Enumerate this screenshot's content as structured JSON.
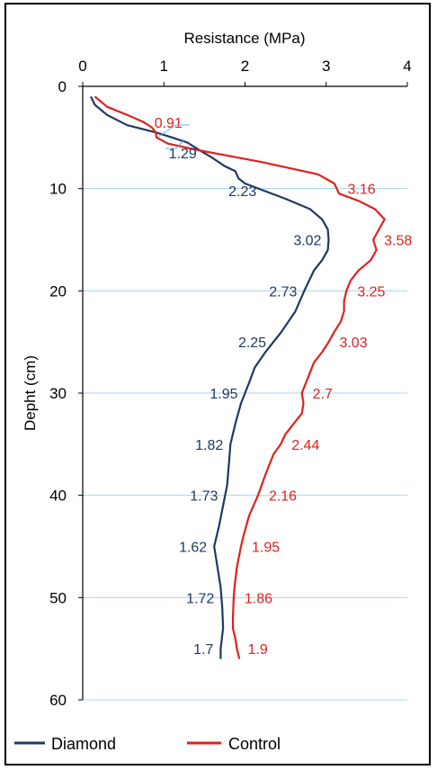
{
  "chart_data": {
    "type": "line",
    "orientation": "depth-profile",
    "xlabel": "Resistance (MPa)",
    "ylabel": "Depht (cm)",
    "xlim": [
      0,
      4
    ],
    "ylim": [
      0,
      60
    ],
    "x_ticks": [
      "0",
      "1",
      "2",
      "3",
      "4"
    ],
    "y_ticks": [
      "0",
      "10",
      "20",
      "30",
      "40",
      "50",
      "60"
    ],
    "x_axis_position": "top",
    "grid": "horizontal",
    "legend_position": "bottom",
    "series": [
      {
        "name": "Diamond",
        "color": "#1f3864",
        "points": [
          [
            0.1,
            1
          ],
          [
            0.15,
            1.8
          ],
          [
            0.3,
            2.8
          ],
          [
            0.55,
            3.8
          ],
          [
            0.9,
            4.5
          ],
          [
            1.1,
            5
          ],
          [
            1.29,
            5.5
          ],
          [
            1.45,
            6.3
          ],
          [
            1.6,
            7
          ],
          [
            1.75,
            7.8
          ],
          [
            1.88,
            8.3
          ],
          [
            1.92,
            9
          ],
          [
            2.0,
            9.5
          ],
          [
            2.23,
            10.2
          ],
          [
            2.5,
            11
          ],
          [
            2.8,
            12
          ],
          [
            2.95,
            13
          ],
          [
            3.02,
            14
          ],
          [
            3.03,
            15
          ],
          [
            3.02,
            16
          ],
          [
            2.95,
            17
          ],
          [
            2.85,
            18
          ],
          [
            2.73,
            20
          ],
          [
            2.62,
            22
          ],
          [
            2.45,
            24
          ],
          [
            2.25,
            26
          ],
          [
            2.12,
            27.5
          ],
          [
            2.05,
            29
          ],
          [
            1.95,
            31
          ],
          [
            1.88,
            33
          ],
          [
            1.82,
            35
          ],
          [
            1.8,
            37
          ],
          [
            1.78,
            39
          ],
          [
            1.73,
            41
          ],
          [
            1.68,
            43
          ],
          [
            1.62,
            45
          ],
          [
            1.66,
            47
          ],
          [
            1.7,
            49
          ],
          [
            1.72,
            51
          ],
          [
            1.73,
            53
          ],
          [
            1.7,
            55
          ],
          [
            1.7,
            56
          ]
        ],
        "labels": [
          {
            "text": "1.29",
            "depth": 6.5
          },
          {
            "text": "2.23",
            "depth": 10.2
          },
          {
            "text": "3.02",
            "depth": 15
          },
          {
            "text": "2.73",
            "depth": 20
          },
          {
            "text": "2.25",
            "depth": 25
          },
          {
            "text": "1.95",
            "depth": 30
          },
          {
            "text": "1.82",
            "depth": 35
          },
          {
            "text": "1.73",
            "depth": 40
          },
          {
            "text": "1.62",
            "depth": 45
          },
          {
            "text": "1.72",
            "depth": 50
          },
          {
            "text": "1.7",
            "depth": 55
          }
        ]
      },
      {
        "name": "Control",
        "color": "#e02020",
        "points": [
          [
            0.15,
            1
          ],
          [
            0.3,
            2
          ],
          [
            0.55,
            2.8
          ],
          [
            0.75,
            3.5
          ],
          [
            0.85,
            4
          ],
          [
            0.9,
            4.5
          ],
          [
            0.91,
            5
          ],
          [
            1.05,
            5.6
          ],
          [
            1.4,
            6.2
          ],
          [
            1.8,
            6.8
          ],
          [
            2.2,
            7.4
          ],
          [
            2.55,
            8
          ],
          [
            2.9,
            8.6
          ],
          [
            3.1,
            9.5
          ],
          [
            3.16,
            10.5
          ],
          [
            3.4,
            11.2
          ],
          [
            3.6,
            12
          ],
          [
            3.72,
            13
          ],
          [
            3.65,
            14
          ],
          [
            3.58,
            15
          ],
          [
            3.62,
            16
          ],
          [
            3.55,
            17
          ],
          [
            3.4,
            18
          ],
          [
            3.3,
            19
          ],
          [
            3.25,
            20
          ],
          [
            3.22,
            21
          ],
          [
            3.22,
            22
          ],
          [
            3.18,
            23
          ],
          [
            3.1,
            24
          ],
          [
            3.03,
            25
          ],
          [
            2.95,
            26
          ],
          [
            2.85,
            27
          ],
          [
            2.8,
            28
          ],
          [
            2.75,
            29
          ],
          [
            2.7,
            30
          ],
          [
            2.72,
            31
          ],
          [
            2.7,
            32
          ],
          [
            2.6,
            33
          ],
          [
            2.5,
            34
          ],
          [
            2.44,
            35
          ],
          [
            2.35,
            36
          ],
          [
            2.25,
            38
          ],
          [
            2.16,
            40
          ],
          [
            2.05,
            42
          ],
          [
            1.98,
            44
          ],
          [
            1.95,
            45
          ],
          [
            1.9,
            47
          ],
          [
            1.87,
            49
          ],
          [
            1.86,
            50
          ],
          [
            1.85,
            52
          ],
          [
            1.85,
            53
          ],
          [
            1.88,
            54
          ],
          [
            1.9,
            55
          ],
          [
            1.93,
            56
          ]
        ],
        "labels": [
          {
            "text": "0.91",
            "depth": 3.5
          },
          {
            "text": "3.16",
            "depth": 10
          },
          {
            "text": "3.58",
            "depth": 15
          },
          {
            "text": "3.25",
            "depth": 20
          },
          {
            "text": "3.03",
            "depth": 25
          },
          {
            "text": "2.7",
            "depth": 30
          },
          {
            "text": "2.44",
            "depth": 35
          },
          {
            "text": "2.16",
            "depth": 40
          },
          {
            "text": "1.95",
            "depth": 45
          },
          {
            "text": "1.86",
            "depth": 50
          },
          {
            "text": "1.9",
            "depth": 55
          }
        ]
      }
    ]
  }
}
